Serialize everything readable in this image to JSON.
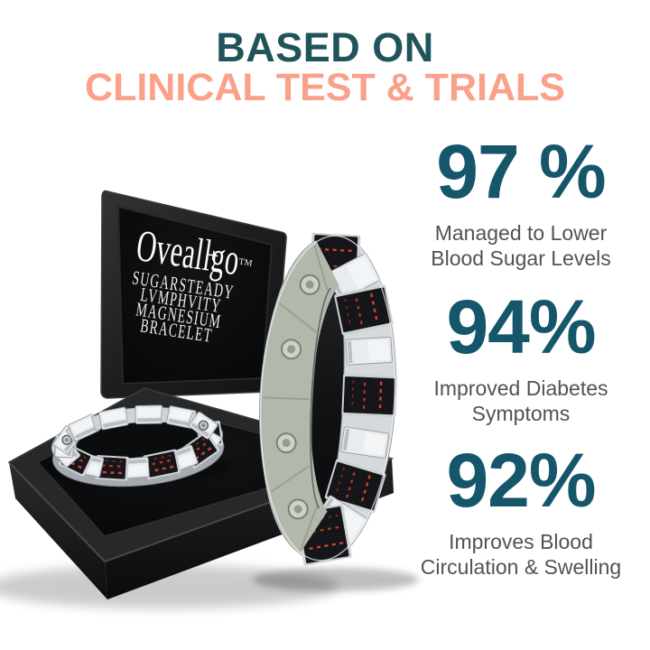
{
  "header": {
    "line1": "BASED ON",
    "line2": "CLINICAL TEST & TRIALS"
  },
  "product_box": {
    "brand": "Oveallgo",
    "trademark": "TM",
    "lines": [
      "SUGARSTEADY",
      "LVMPHVITY",
      "MAGNESIUM",
      "BRACELET"
    ]
  },
  "stats": [
    {
      "value": "97 %",
      "label1": "Managed to Lower",
      "label2": "Blood Sugar Levels"
    },
    {
      "value": "94%",
      "label1": "Improved Diabetes",
      "label2": "Symptoms"
    },
    {
      "value": "92%",
      "label1": "Improves Blood",
      "label2": "Circulation & Swelling"
    }
  ],
  "colors": {
    "background": "#FFFFFF",
    "title_teal": "#20545A",
    "stat_teal": "#15566A",
    "salmon": "#F9A189",
    "label_gray": "#505356",
    "box_black": "#1B1C1E",
    "velvet_black": "#08090A",
    "silver": "#D6D9DC",
    "silver_bright": "#F2F4F6",
    "carbon_black": "#14161A",
    "stitch_red": "#D8402A",
    "inner_metal": "#B3B8AD"
  }
}
